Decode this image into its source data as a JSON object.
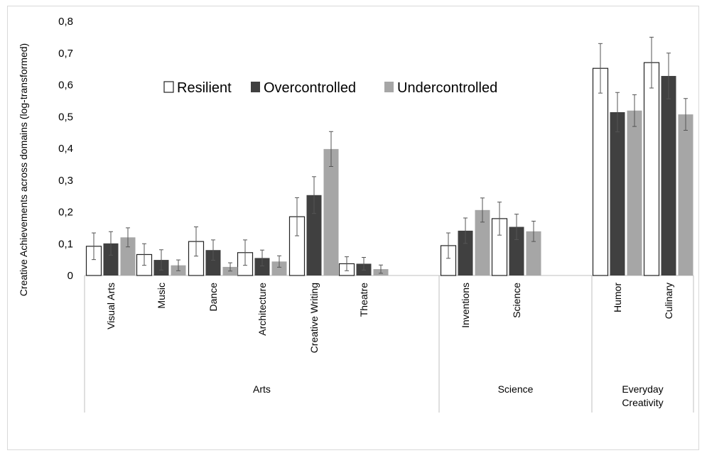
{
  "chart_data": {
    "type": "bar",
    "title": "",
    "ylabel": "Creative Achievements across domains (log-transformed)",
    "ylim": [
      0,
      0.8
    ],
    "yticks": [
      "0",
      "0,1",
      "0,2",
      "0,3",
      "0,4",
      "0,5",
      "0,6",
      "0,7",
      "0,8"
    ],
    "grid": false,
    "legend_position": "top-center",
    "categories": [
      "Visual Arts",
      "Music",
      "Dance",
      "Architecture",
      "Creative Writing",
      "Theatre",
      "Inventions",
      "Science",
      "Humor",
      "Culinary"
    ],
    "groups": [
      {
        "label": "Arts",
        "categories": [
          "Visual Arts",
          "Music",
          "Dance",
          "Architecture",
          "Creative Writing",
          "Theatre"
        ]
      },
      {
        "label": "Science",
        "categories": [
          "Inventions",
          "Science"
        ]
      },
      {
        "label": "Everyday Creativity",
        "categories": [
          "Humor",
          "Culinary"
        ]
      }
    ],
    "series": [
      {
        "name": "Resilient",
        "color": "#ffffff",
        "values": [
          0.092,
          0.066,
          0.107,
          0.072,
          0.185,
          0.037,
          0.094,
          0.179,
          0.652,
          0.67
        ],
        "errors": [
          0.042,
          0.034,
          0.046,
          0.04,
          0.06,
          0.022,
          0.04,
          0.052,
          0.078,
          0.08
        ]
      },
      {
        "name": "Overcontrolled",
        "color": "#404040",
        "values": [
          0.101,
          0.049,
          0.08,
          0.055,
          0.253,
          0.037,
          0.141,
          0.153,
          0.514,
          0.628
        ],
        "errors": [
          0.037,
          0.032,
          0.032,
          0.025,
          0.058,
          0.02,
          0.04,
          0.04,
          0.062,
          0.072
        ]
      },
      {
        "name": "Undercontrolled",
        "color": "#a6a6a6",
        "values": [
          0.12,
          0.032,
          0.027,
          0.044,
          0.398,
          0.02,
          0.206,
          0.139,
          0.519,
          0.507
        ],
        "errors": [
          0.03,
          0.017,
          0.013,
          0.018,
          0.055,
          0.013,
          0.038,
          0.032,
          0.05,
          0.05
        ]
      }
    ]
  }
}
